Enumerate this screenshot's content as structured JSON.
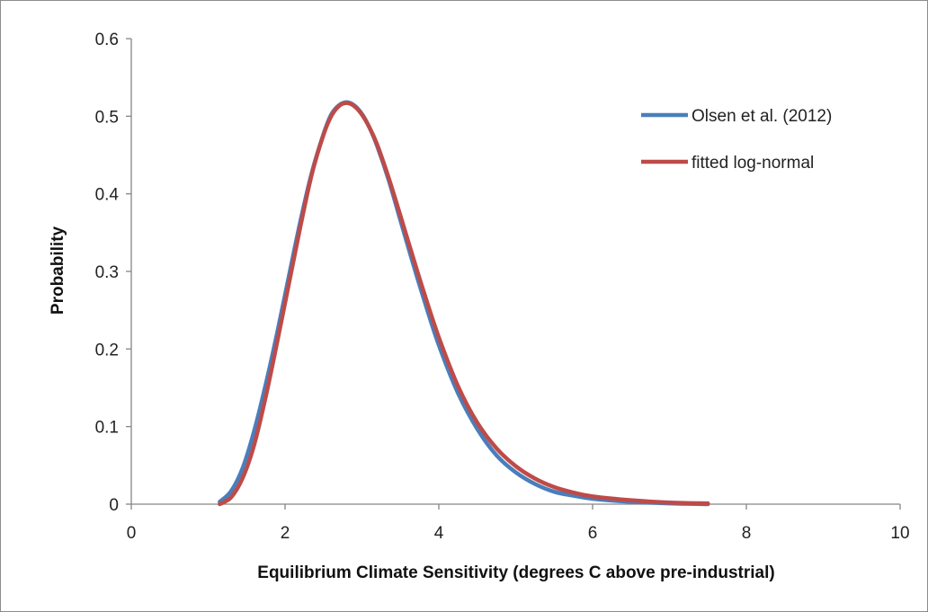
{
  "chart_data": {
    "type": "line",
    "title": "",
    "xlabel": "Equilibrium Climate Sensitivity (degrees C above pre-industrial)",
    "ylabel": "Probability",
    "xlim": [
      0,
      10
    ],
    "ylim": [
      0,
      0.6
    ],
    "x_ticks": [
      0,
      2,
      4,
      6,
      8,
      10
    ],
    "x_tick_labels": [
      "0",
      "2",
      "4",
      "6",
      "8",
      "10"
    ],
    "y_ticks": [
      0,
      0.1,
      0.2,
      0.3,
      0.4,
      0.5,
      0.6
    ],
    "y_tick_labels": [
      "0",
      "0.1",
      "0.2",
      "0.3",
      "0.4",
      "0.5",
      "0.6"
    ],
    "grid": false,
    "legend_position": "top-right",
    "series": [
      {
        "name": "Olsen et al. (2012)",
        "color": "#4a7ebb",
        "x": [
          1.15,
          1.3,
          1.45,
          1.6,
          1.75,
          1.9,
          2.05,
          2.2,
          2.35,
          2.5,
          2.6,
          2.7,
          2.8,
          2.9,
          3.0,
          3.1,
          3.2,
          3.35,
          3.5,
          3.65,
          3.8,
          4.0,
          4.25,
          4.5,
          4.75,
          5.0,
          5.25,
          5.5,
          5.75,
          6.0,
          6.5,
          7.0,
          7.5
        ],
        "y": [
          0.003,
          0.017,
          0.047,
          0.095,
          0.155,
          0.222,
          0.294,
          0.365,
          0.428,
          0.477,
          0.502,
          0.514,
          0.518,
          0.514,
          0.503,
          0.485,
          0.461,
          0.417,
          0.366,
          0.315,
          0.266,
          0.205,
          0.143,
          0.097,
          0.063,
          0.041,
          0.026,
          0.016,
          0.011,
          0.007,
          0.003,
          0.001,
          0.0
        ]
      },
      {
        "name": "fitted log-normal",
        "color": "#be4b48",
        "x": [
          1.15,
          1.3,
          1.45,
          1.6,
          1.75,
          1.9,
          2.05,
          2.2,
          2.35,
          2.5,
          2.6,
          2.7,
          2.8,
          2.9,
          3.0,
          3.1,
          3.2,
          3.35,
          3.5,
          3.65,
          3.8,
          4.0,
          4.25,
          4.5,
          4.75,
          5.0,
          5.25,
          5.5,
          5.75,
          6.0,
          6.5,
          7.0,
          7.5
        ],
        "y": [
          0.0,
          0.009,
          0.034,
          0.077,
          0.139,
          0.21,
          0.284,
          0.358,
          0.426,
          0.476,
          0.5,
          0.513,
          0.517,
          0.513,
          0.502,
          0.485,
          0.463,
          0.42,
          0.372,
          0.323,
          0.275,
          0.215,
          0.152,
          0.105,
          0.072,
          0.049,
          0.033,
          0.022,
          0.015,
          0.01,
          0.005,
          0.002,
          0.001
        ]
      }
    ]
  }
}
